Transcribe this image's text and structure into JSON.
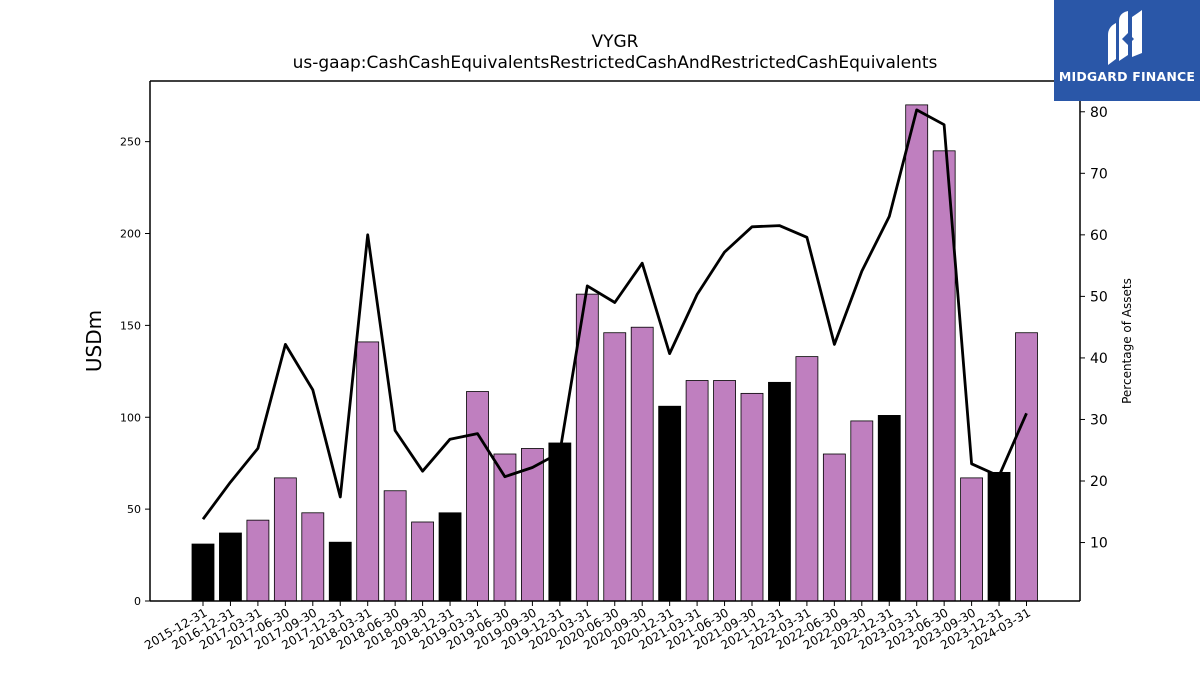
{
  "chart_data": {
    "type": "bar+line",
    "title": "VYGR",
    "subtitle": "us-gaap:CashCashEquivalentsRestrictedCashAndRestrictedCashEquivalents",
    "ylabel": "USDm",
    "y2label": "Percentage of Assets",
    "ylim": [
      0,
      283
    ],
    "y2lim": [
      0.5,
      85
    ],
    "yticks": [
      0,
      50,
      100,
      150,
      200,
      250
    ],
    "y2ticks": [
      10,
      20,
      30,
      40,
      50,
      60,
      70,
      80
    ],
    "categories": [
      "2015-12-31",
      "2016-12-31",
      "2017-03-31",
      "2017-06-30",
      "2017-09-30",
      "2017-12-31",
      "2018-03-31",
      "2018-06-30",
      "2018-09-30",
      "2018-12-31",
      "2019-03-31",
      "2019-06-30",
      "2019-09-30",
      "2019-12-31",
      "2020-03-31",
      "2020-06-30",
      "2020-09-30",
      "2020-12-31",
      "2021-03-31",
      "2021-06-30",
      "2021-09-30",
      "2021-12-31",
      "2022-03-31",
      "2022-06-30",
      "2022-09-30",
      "2022-12-31",
      "2023-03-31",
      "2023-06-30",
      "2023-09-30",
      "2023-12-31",
      "2024-03-31"
    ],
    "bar_values": [
      31,
      37,
      44,
      67,
      48,
      32,
      141,
      60,
      43,
      48,
      114,
      80,
      83,
      86,
      167,
      146,
      149,
      106,
      120,
      120,
      113,
      119,
      133,
      80,
      98,
      101,
      270,
      245,
      67,
      70,
      146
    ],
    "bar_colors": [
      "#000000",
      "#000000",
      "#bf7fbf",
      "#bf7fbf",
      "#bf7fbf",
      "#000000",
      "#bf7fbf",
      "#bf7fbf",
      "#bf7fbf",
      "#000000",
      "#bf7fbf",
      "#bf7fbf",
      "#bf7fbf",
      "#000000",
      "#bf7fbf",
      "#bf7fbf",
      "#bf7fbf",
      "#000000",
      "#bf7fbf",
      "#bf7fbf",
      "#bf7fbf",
      "#000000",
      "#bf7fbf",
      "#bf7fbf",
      "#bf7fbf",
      "#000000",
      "#bf7fbf",
      "#bf7fbf",
      "#bf7fbf",
      "#000000",
      "#bf7fbf"
    ],
    "line_values": [
      13.8,
      19.8,
      25.3,
      42.2,
      34.8,
      17.4,
      60.0,
      28.2,
      21.6,
      26.8,
      27.7,
      20.7,
      22.2,
      24.6,
      51.7,
      49.0,
      55.4,
      40.7,
      50.3,
      57.2,
      61.3,
      61.5,
      59.6,
      42.2,
      54.1,
      63.0,
      80.3,
      77.9,
      22.8,
      20.8,
      31.0
    ],
    "grid": false,
    "legend": "none"
  },
  "logo": {
    "text": "MIDGARD FINANCE",
    "bg_color": "#2a57a8"
  }
}
